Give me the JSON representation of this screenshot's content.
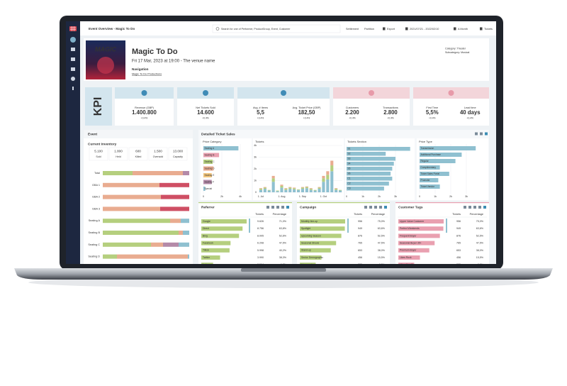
{
  "top_bar": {
    "title": "Event Overview - Magic To Do",
    "search": "Search for one of Performer, ProductGroup, Event, Customer",
    "buttons": [
      "Settlement",
      "Partition",
      "Export",
      "2021/07/21 - 2022/02/10",
      "A Month",
      "Tickets"
    ]
  },
  "event": {
    "poster": "MAGIC",
    "title": "Magic To Do",
    "date": "Fri 17 Mar, 2023 at 19:00 - The venue name",
    "navigation": "Navigation",
    "link": "Magic To Do Productions",
    "category": "Category: Theater",
    "subcategory": "Subcategory: Musical"
  },
  "kpi": {
    "label": "KPI",
    "groups": [
      {
        "color": "#d3e5ee",
        "items": [
          {
            "label": "Revenue (GBP)",
            "value": "1.400.800",
            "delta": "+0.4%"
          }
        ]
      },
      {
        "color": "#d3e5ee",
        "items": [
          {
            "label": "Net Tickets Sold",
            "value": "14.600",
            "delta": "+0.4%"
          }
        ]
      },
      {
        "color": "#d3e5ee",
        "items": [
          {
            "label": "Avg. # Items",
            "value": "5,5",
            "delta": "+0.4%"
          },
          {
            "label": "Avg. Ticket Price (GBP)",
            "value": "182,50",
            "delta": "+0.4%"
          }
        ]
      },
      {
        "color": "#f3d5da",
        "items": [
          {
            "label": "Customers",
            "value": "2.200",
            "delta": "+0.4%"
          },
          {
            "label": "Transactions",
            "value": "2.800",
            "delta": "+0.4%"
          }
        ]
      },
      {
        "color": "#f3d5da",
        "items": [
          {
            "label": "First Time",
            "value": "5,5%",
            "delta": "+0.4%"
          },
          {
            "label": "Lead time",
            "value": "40 days",
            "delta": "+0.4%"
          }
        ]
      }
    ]
  },
  "inventory": {
    "panel_title": "Event",
    "title": "Current Inventory",
    "stats": [
      {
        "value": "5.100",
        "label": "Sold"
      },
      {
        "value": "1.800",
        "label": "Held"
      },
      {
        "value": "600",
        "label": "Killed"
      },
      {
        "value": "1.500",
        "label": "Oversold"
      },
      {
        "value": "13.000",
        "label": "Capacity"
      }
    ],
    "rows": [
      "Total",
      "GBA 1",
      "GBA 2",
      "GBA 3",
      "Seating A",
      "Seating B",
      "Seating C",
      "Seating D"
    ],
    "series": [
      {
        "color": "#b5cf7e",
        "values": [
          42,
          0,
          0,
          0,
          95,
          107,
          68,
          20
        ]
      },
      {
        "color": "#e9ac90",
        "values": [
          71,
          80,
          82,
          81,
          15,
          6,
          17,
          100
        ]
      },
      {
        "color": "#cf4f64",
        "values": [
          0,
          42,
          40,
          41,
          0,
          0,
          0,
          0
        ]
      },
      {
        "color": "#b48aa8",
        "values": [
          9,
          0,
          0,
          0,
          0,
          0,
          22,
          0
        ]
      },
      {
        "color": "#8fc0d0",
        "values": [
          0,
          0,
          0,
          0,
          12,
          9,
          15,
          2
        ]
      }
    ]
  },
  "ticket_sales": {
    "title": "Detailed Ticket Sales",
    "price_category": {
      "title": "Price Category",
      "categories": [
        "Seating A",
        "Seating B",
        "Seating C",
        "Seating D",
        "Seating E",
        "Seating F",
        "Special"
      ],
      "values": [
        3800,
        1700,
        1000,
        1100,
        900,
        900,
        200
      ],
      "colors": [
        "#8fc0d0",
        "#e9a0b0",
        "#b5cf7e",
        "#e9ac90",
        "#f2c57c",
        "#b48aa8",
        "#8fc0d0"
      ],
      "xlim": [
        0,
        4000
      ],
      "xticks": [
        0,
        {
          "value": 2000,
          "label": "2k"
        },
        {
          "value": 4000,
          "label": "4k"
        }
      ]
    },
    "tickets": {
      "title": "Tickets",
      "categories": [
        "1. Jul",
        null,
        null,
        null,
        null,
        "1. Aug",
        null,
        null,
        null,
        null,
        "1. Sep",
        null,
        null,
        null,
        null,
        "1. Oct",
        null,
        null,
        null,
        null
      ],
      "series": [
        {
          "color": "#8fc0d0",
          "values": [
            200,
            300,
            150,
            900,
            100,
            400,
            200,
            300,
            250,
            200,
            300,
            350,
            200,
            150,
            300,
            900,
            1100,
            1800,
            200,
            150
          ]
        },
        {
          "color": "#b5cf7e",
          "values": [
            100,
            100,
            50,
            300,
            50,
            150,
            100,
            100,
            100,
            50,
            100,
            100,
            100,
            50,
            100,
            300,
            400,
            500,
            100,
            50
          ]
        },
        {
          "color": "#e9ac90",
          "values": [
            50,
            50,
            0,
            200,
            0,
            100,
            50,
            50,
            50,
            0,
            50,
            50,
            50,
            0,
            50,
            200,
            300,
            400,
            50,
            0
          ]
        }
      ],
      "ylim": [
        0,
        4000
      ],
      "yticks": [
        0,
        {
          "value": 1000,
          "label": "1k"
        },
        {
          "value": 2000,
          "label": "2k"
        },
        {
          "value": 3000,
          "label": "3k"
        },
        {
          "value": 4000,
          "label": "4k"
        }
      ]
    },
    "section": {
      "title": "Tickets Section",
      "categories": [
        "S1",
        "S2",
        "S3",
        "S4",
        "S5",
        "S6",
        "C1",
        "C2",
        "C3"
      ],
      "values": [
        3900,
        2400,
        3000,
        2900,
        2800,
        2700,
        2800,
        2600,
        2300
      ],
      "color": "#8fc0d0",
      "xlim": [
        0,
        4000
      ],
      "xticks": [
        0,
        {
          "value": 1000,
          "label": "1k"
        },
        {
          "value": 2000,
          "label": "2k"
        },
        {
          "value": 3000,
          "label": "3k"
        }
      ]
    },
    "price_type": {
      "title": "Price Type",
      "categories": [
        "Transmission",
        "Additional Purchase",
        "Regular",
        "Complimentary",
        "Ticket Sales Portal",
        "Promoter",
        "Ticket Vendor"
      ],
      "values": [
        3600,
        2700,
        2300,
        1300,
        1900,
        1200,
        1300
      ],
      "color": "#8fc0d0",
      "xlim": [
        0,
        4000
      ],
      "xticks": [
        0,
        {
          "value": 1000,
          "label": "1k"
        },
        {
          "value": 2000,
          "label": "2k"
        },
        {
          "value": 3000,
          "label": "3k"
        }
      ]
    }
  },
  "tables": [
    {
      "title": "Referrer",
      "columns": [
        "Tickets",
        "Percentage"
      ],
      "color": "#b5cf7e",
      "rows": [
        [
          "Google",
          "9.626",
          "71,0%"
        ],
        [
          "Direct",
          "8.756",
          "63,8%"
        ],
        [
          "Bing",
          "8.005",
          "52,6%"
        ],
        [
          "Facebook",
          "6.208",
          "47,5%"
        ],
        [
          "Tiktok",
          "5.998",
          "40,2%"
        ],
        [
          "Twitter",
          "3.990",
          "38,3%"
        ],
        [
          "Instagram",
          "2.504",
          "6,7%"
        ]
      ]
    },
    {
      "title": "Campaign",
      "columns": [
        "Tickets",
        "Percentage"
      ],
      "color": "#b5cf7e",
      "rows": [
        [
          "Monthly line-up",
          "956",
          "75,0%"
        ],
        [
          "Spotlight",
          "949",
          "63,6%"
        ],
        [
          "Upcoming Season",
          "876",
          "52,5%"
        ],
        [
          "Seasonal Shows",
          "765",
          "47,5%"
        ],
        [
          "Stand-up",
          "653",
          "38,0%"
        ],
        [
          "Senior Demographic",
          "456",
          "15,5%"
        ],
        [
          "Live evenings",
          "335",
          "8,5%"
        ]
      ]
    },
    {
      "title": "Customer Tags",
      "columns": [
        "Tickets",
        "Percentage"
      ],
      "color": "#e9a0b0",
      "rows": [
        [
          "Upper Value Customer",
          "956",
          "75,0%"
        ],
        [
          "Perfect Weekends",
          "949",
          "63,6%"
        ],
        [
          "Frequent Buyer",
          "876",
          "52,5%"
        ],
        [
          "Seasonal Buyer 35+",
          "765",
          "47,5%"
        ],
        [
          "Premium Buyer",
          "653",
          "38,0%"
        ],
        [
          "Likes Rock",
          "456",
          "15,5%"
        ],
        [
          "Likes Headline",
          "335",
          "8,5%"
        ]
      ]
    }
  ]
}
